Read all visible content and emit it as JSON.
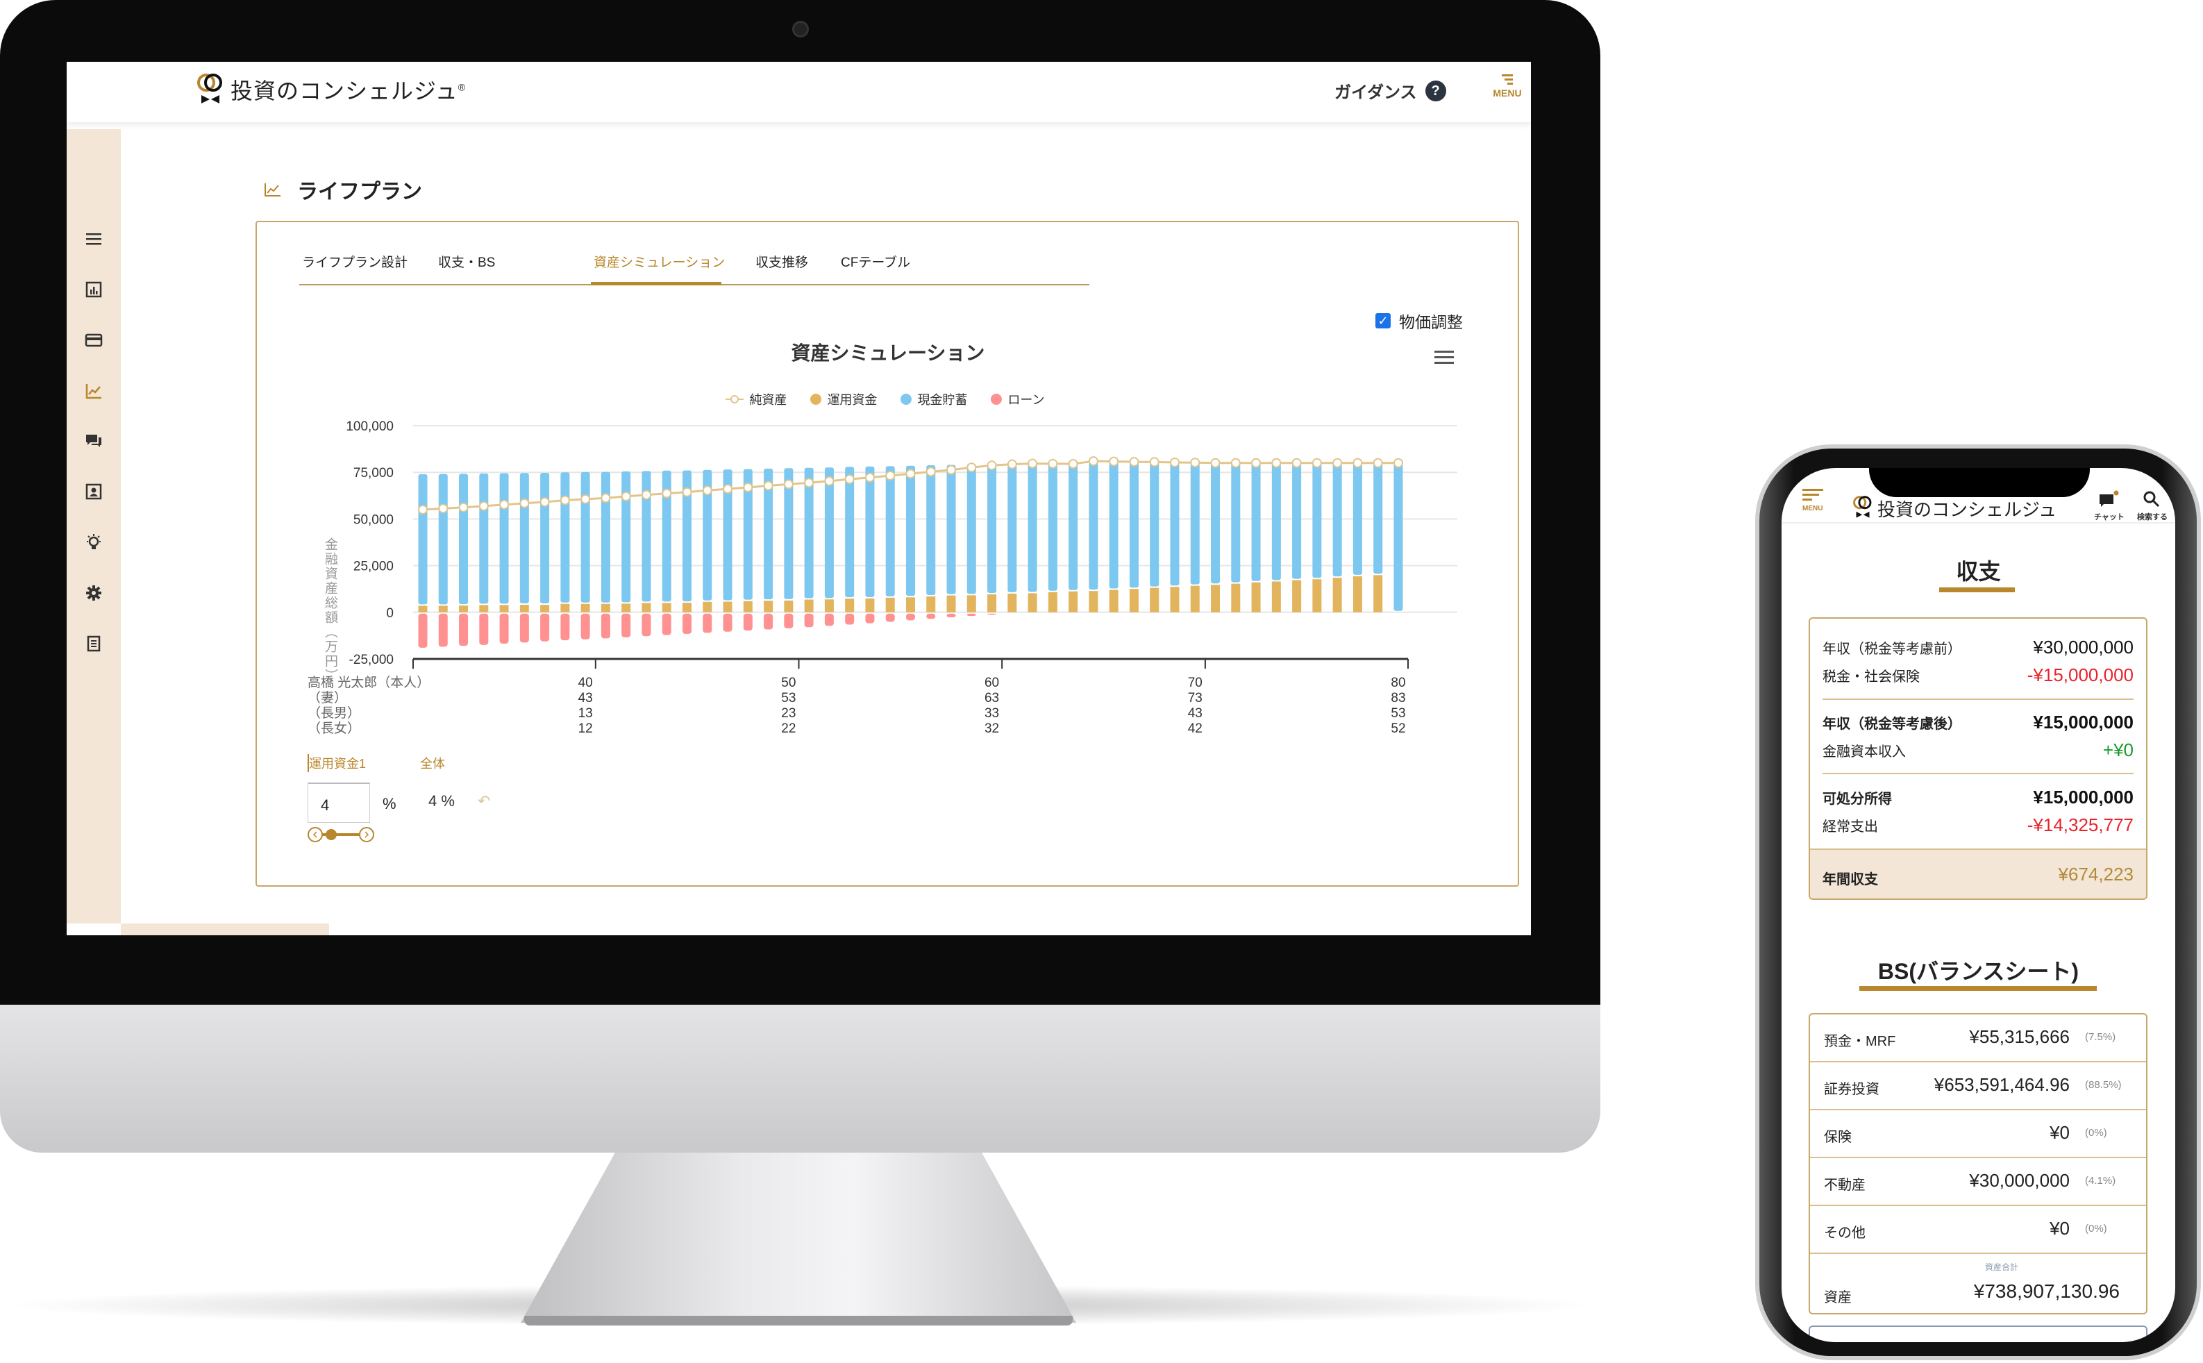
{
  "desktop": {
    "header": {
      "brand": "投資のコンシェルジュ",
      "reg": "®",
      "guidance": "ガイダンス",
      "help_icon": "?",
      "menu": "MENU"
    },
    "sidebar": {
      "items": [
        {
          "icon": "hamburger-icon"
        },
        {
          "icon": "bar-chart-icon"
        },
        {
          "icon": "credit-card-icon"
        },
        {
          "icon": "line-chart-icon",
          "active": true
        },
        {
          "icon": "chat-icon"
        },
        {
          "icon": "contact-card-icon"
        },
        {
          "icon": "lightbulb-icon"
        },
        {
          "icon": "gear-icon"
        },
        {
          "icon": "document-icon"
        }
      ]
    },
    "page_title": "ライフプラン",
    "tabs": [
      {
        "label": "ライフプラン設計"
      },
      {
        "label": "収支・BS"
      },
      {
        "label": "資産シミュレーション",
        "active": true
      },
      {
        "label": "収支推移"
      },
      {
        "label": "CFテーブル"
      }
    ],
    "price_adjust": {
      "label": "物価調整",
      "checked": true
    },
    "controls": {
      "tab1": "運用資金1",
      "tab2": "全体",
      "rate_input": "4",
      "unit": "%",
      "overall_rate": "4 %",
      "slider_value": 4
    }
  },
  "chart_data": {
    "type": "bar",
    "stacked": true,
    "title": "資産シミュレーション",
    "ylabel": "金融資産総額（万円）",
    "ylim": [
      -25000,
      100000
    ],
    "yticks": [
      -25000,
      0,
      25000,
      50000,
      75000,
      100000
    ],
    "grid": true,
    "legend_position": "top",
    "x": [
      32,
      33,
      34,
      35,
      36,
      37,
      38,
      39,
      40,
      41,
      42,
      43,
      44,
      45,
      46,
      47,
      48,
      49,
      50,
      51,
      52,
      53,
      54,
      55,
      56,
      57,
      58,
      59,
      60,
      61,
      62,
      63,
      64,
      65,
      66,
      67,
      68,
      69,
      70,
      71,
      72,
      73,
      74,
      75,
      76,
      77,
      78,
      79,
      80
    ],
    "series": [
      {
        "name": "純資産",
        "type": "line",
        "color": "#e2c58b",
        "values": [
          55000,
          55600,
          56200,
          56900,
          57700,
          58400,
          59100,
          60000,
          60600,
          61200,
          62100,
          62900,
          63700,
          64400,
          65300,
          66100,
          66900,
          67800,
          68600,
          69400,
          70300,
          71300,
          72200,
          73200,
          74200,
          75300,
          76300,
          77600,
          78700,
          79300,
          79700,
          79600,
          79500,
          81000,
          80800,
          80600,
          80500,
          80300,
          80200,
          80000,
          80000,
          80000,
          80000,
          80000,
          80000,
          80000,
          80000,
          80000,
          80000
        ]
      },
      {
        "name": "運用資金",
        "type": "bar",
        "color": "#e3b45e",
        "values": [
          3500,
          3500,
          3600,
          3900,
          3900,
          4000,
          4000,
          4500,
          4500,
          4500,
          4600,
          5000,
          5000,
          5100,
          5600,
          5700,
          6000,
          6200,
          6300,
          6800,
          6900,
          7300,
          7400,
          7800,
          8000,
          8500,
          9000,
          9100,
          9600,
          10000,
          10200,
          10800,
          11200,
          11400,
          12000,
          12500,
          13100,
          13600,
          14200,
          14700,
          15300,
          16000,
          16500,
          17200,
          17700,
          18500,
          19300,
          19900,
          0
        ]
      },
      {
        "name": "現金貯蓄",
        "type": "bar",
        "color": "#7cc8f0",
        "values": [
          70500,
          70600,
          70600,
          70500,
          70600,
          70600,
          70700,
          70500,
          70600,
          70700,
          70900,
          70700,
          70900,
          70900,
          70700,
          70800,
          70700,
          70800,
          70900,
          70600,
          70700,
          70600,
          70700,
          70500,
          70500,
          70300,
          70000,
          70500,
          70400,
          69800,
          69500,
          68800,
          68300,
          69600,
          68800,
          68100,
          67400,
          66700,
          66000,
          65400,
          64700,
          64000,
          63500,
          62800,
          62300,
          61500,
          60700,
          60100,
          80000
        ]
      },
      {
        "name": "ローン",
        "type": "bar",
        "color": "#ff9191",
        "values": [
          -19000,
          -18500,
          -18000,
          -17500,
          -16800,
          -16200,
          -15600,
          -15000,
          -14500,
          -14000,
          -13400,
          -12800,
          -12200,
          -11600,
          -11000,
          -10400,
          -9800,
          -9200,
          -8600,
          -8000,
          -7300,
          -6600,
          -5900,
          -5100,
          -4300,
          -3500,
          -2700,
          -2000,
          -1300,
          -500,
          0,
          0,
          0,
          0,
          0,
          0,
          0,
          0,
          0,
          0,
          0,
          0,
          0,
          0,
          0,
          0,
          0,
          0,
          0
        ]
      }
    ],
    "age_table": {
      "tick_ages": [
        40,
        50,
        60,
        70,
        80
      ],
      "rows": [
        {
          "name": "高橋 光太郎（本人）",
          "labels": [
            "40",
            "50",
            "60",
            "70",
            "80"
          ]
        },
        {
          "name": "（妻）",
          "labels": [
            "43",
            "53",
            "63",
            "73",
            "83"
          ]
        },
        {
          "name": "（長男）",
          "labels": [
            "13",
            "23",
            "33",
            "43",
            "53"
          ]
        },
        {
          "name": "（長女）",
          "labels": [
            "12",
            "22",
            "32",
            "42",
            "52"
          ]
        }
      ]
    }
  },
  "mobile": {
    "header": {
      "menu": "MENU",
      "brand": "投資のコンシェルジュ",
      "chat": "チャット",
      "search": "検索する"
    },
    "income": {
      "title": "収支",
      "rows": [
        {
          "label": "年収（税金等考慮前）",
          "value": "¥30,000,000",
          "tone": "normal"
        },
        {
          "label": "税金・社会保険",
          "value": "-¥15,000,000",
          "tone": "negative"
        },
        {
          "label": "年収（税金等考慮後）",
          "value": "¥15,000,000",
          "tone": "normal"
        },
        {
          "label": "金融資本収入",
          "value": "+¥0",
          "tone": "positive"
        },
        {
          "label": "可処分所得",
          "value": "¥15,000,000",
          "tone": "normal"
        },
        {
          "label": "経常支出",
          "value": "-¥14,325,777",
          "tone": "negative"
        }
      ],
      "total": {
        "label": "年間収支",
        "value": "¥674,223"
      }
    },
    "bs": {
      "title": "BS(バランスシート)",
      "rows": [
        {
          "label": "預金・MRF",
          "value": "¥55,315,666",
          "pct": "(7.5%)"
        },
        {
          "label": "証券投資",
          "value": "¥653,591,464.96",
          "pct": "(88.5%)"
        },
        {
          "label": "保険",
          "value": "¥0",
          "pct": "(0%)"
        },
        {
          "label": "不動産",
          "value": "¥30,000,000",
          "pct": "(4.1%)"
        },
        {
          "label": "その他",
          "value": "¥0",
          "pct": "(0%)"
        }
      ],
      "total": {
        "label": "資産",
        "caption": "資産合計",
        "value": "¥738,907,130.96"
      }
    }
  },
  "colors": {
    "accent": "#b8862b",
    "sidebar_bg": "#f3e6d6",
    "card_border": "#c8a86a",
    "negative": "#e8232a",
    "positive": "#1a9a2a"
  }
}
